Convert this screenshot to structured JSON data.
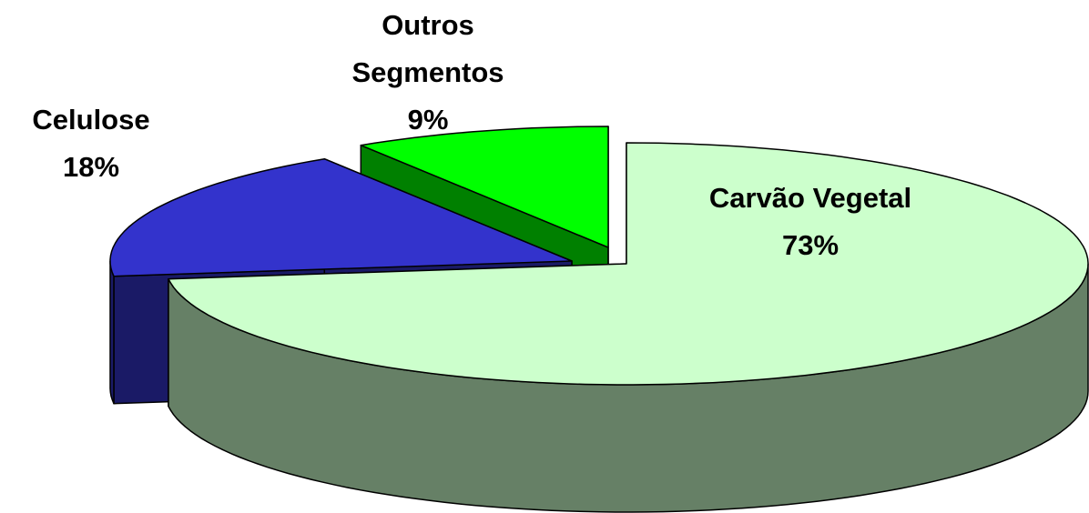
{
  "chart_data": {
    "type": "pie",
    "pie_3d": true,
    "categories": [
      "Carvão Vegetal",
      "Celulose",
      "Outros Segmentos"
    ],
    "values": [
      73,
      18,
      9
    ],
    "value_labels": [
      "73%",
      "18%",
      "9%"
    ],
    "colors": [
      "#ccffcc",
      "#3333cc",
      "#00ff00"
    ]
  }
}
